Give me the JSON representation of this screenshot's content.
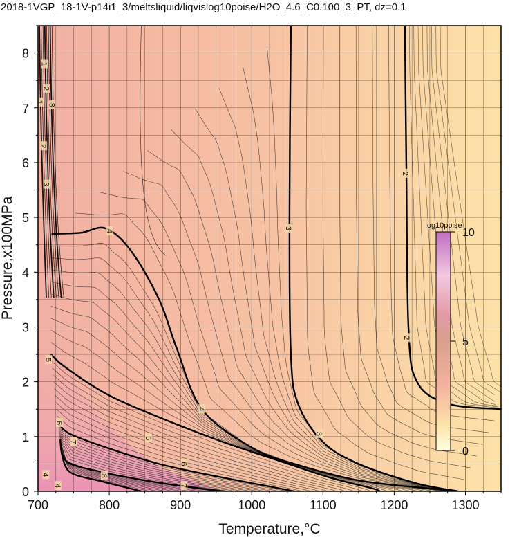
{
  "chart_data": {
    "type": "contour",
    "title": "2018-1VGP_18-1V-p14i1_3/meltsliquid/liqvislog10poise/H2O_4.6_C0.100_3_PT, dz=0.1",
    "xlabel": "Temperature,°C",
    "ylabel": "Pressure,x100MPa",
    "xlim": [
      700,
      1350
    ],
    "ylim": [
      0,
      8.5
    ],
    "xticks": [
      700,
      800,
      900,
      1000,
      1100,
      1200,
      1300
    ],
    "yticks": [
      0,
      1,
      2,
      3,
      4,
      5,
      6,
      7,
      8
    ],
    "grid": true,
    "colorbar": {
      "label": "log10poise",
      "ticks": [
        0,
        5,
        10
      ],
      "range": [
        0,
        10
      ]
    },
    "contour_interval": 0.1,
    "labeled_contours": [
      {
        "level": 2,
        "points": [
          [
            1215,
            8.5
          ],
          [
            1217,
            6.0
          ],
          [
            1220,
            3.0
          ],
          [
            1232,
            2.0
          ],
          [
            1275,
            1.6
          ],
          [
            1350,
            1.5
          ]
        ]
      },
      {
        "level": 3,
        "points": [
          [
            1055,
            8.5
          ],
          [
            1053,
            5.0
          ],
          [
            1055,
            2.5
          ],
          [
            1065,
            1.6
          ],
          [
            1100,
            0.9
          ],
          [
            1150,
            0.5
          ],
          [
            1230,
            0.15
          ],
          [
            1290,
            0.0
          ]
        ]
      },
      {
        "level": 4,
        "points": [
          [
            719,
            4.7
          ],
          [
            760,
            4.72
          ],
          [
            795,
            4.8
          ],
          [
            830,
            4.4
          ],
          [
            870,
            3.5
          ],
          [
            895,
            2.6
          ],
          [
            930,
            1.5
          ],
          [
            1000,
            0.8
          ],
          [
            1060,
            0.5
          ],
          [
            1150,
            0.2
          ],
          [
            1250,
            0.05
          ],
          [
            1290,
            0.0
          ]
        ]
      },
      {
        "level": 5,
        "points": [
          [
            718,
            2.5
          ],
          [
            740,
            2.25
          ],
          [
            800,
            1.75
          ],
          [
            880,
            1.3
          ],
          [
            960,
            0.9
          ],
          [
            1040,
            0.55
          ],
          [
            1110,
            0.25
          ],
          [
            1170,
            0.05
          ],
          [
            1180,
            0.0
          ]
        ]
      },
      {
        "level": 6,
        "points": [
          [
            728,
            1.25
          ],
          [
            745,
            1.05
          ],
          [
            800,
            0.78
          ],
          [
            870,
            0.5
          ],
          [
            940,
            0.3
          ],
          [
            1020,
            0.1
          ],
          [
            1060,
            0.0
          ]
        ]
      },
      {
        "level": 7,
        "points": [
          [
            731,
            0.95
          ],
          [
            740,
            0.55
          ],
          [
            790,
            0.35
          ],
          [
            850,
            0.2
          ],
          [
            900,
            0.1
          ],
          [
            960,
            0.0
          ]
        ]
      },
      {
        "level": 8,
        "points": [
          [
            733,
            0.7
          ],
          [
            745,
            0.35
          ],
          [
            790,
            0.18
          ],
          [
            830,
            0.05
          ],
          [
            845,
            0.0
          ]
        ]
      }
    ],
    "contour_labels": [
      {
        "text": "2",
        "x": 1216,
        "y": 5.8
      },
      {
        "text": "2",
        "x": 1218,
        "y": 2.8
      },
      {
        "text": "3",
        "x": 1052,
        "y": 4.8
      },
      {
        "text": "3",
        "x": 1095,
        "y": 1.05
      },
      {
        "text": "4",
        "x": 801,
        "y": 4.75
      },
      {
        "text": "4",
        "x": 930,
        "y": 1.5
      },
      {
        "text": "5",
        "x": 715,
        "y": 2.4
      },
      {
        "text": "5",
        "x": 855,
        "y": 0.97
      },
      {
        "text": "6",
        "x": 730,
        "y": 1.25
      },
      {
        "text": "6",
        "x": 905,
        "y": 0.5
      },
      {
        "text": "7",
        "x": 750,
        "y": 0.9
      },
      {
        "text": "7",
        "x": 905,
        "y": 0.1
      },
      {
        "text": "8",
        "x": 793,
        "y": 0.28
      },
      {
        "text": "4",
        "x": 711,
        "y": 0.3
      },
      {
        "text": "4",
        "x": 728,
        "y": 0.1
      },
      {
        "text": "1",
        "x": 703,
        "y": 7.1
      },
      {
        "text": "1",
        "x": 709,
        "y": 7.8
      },
      {
        "text": "2",
        "x": 712,
        "y": 7.35
      },
      {
        "text": "3",
        "x": 720,
        "y": 7.05
      },
      {
        "text": "2",
        "x": 708,
        "y": 6.3
      },
      {
        "text": "3",
        "x": 712,
        "y": 5.6
      }
    ]
  }
}
